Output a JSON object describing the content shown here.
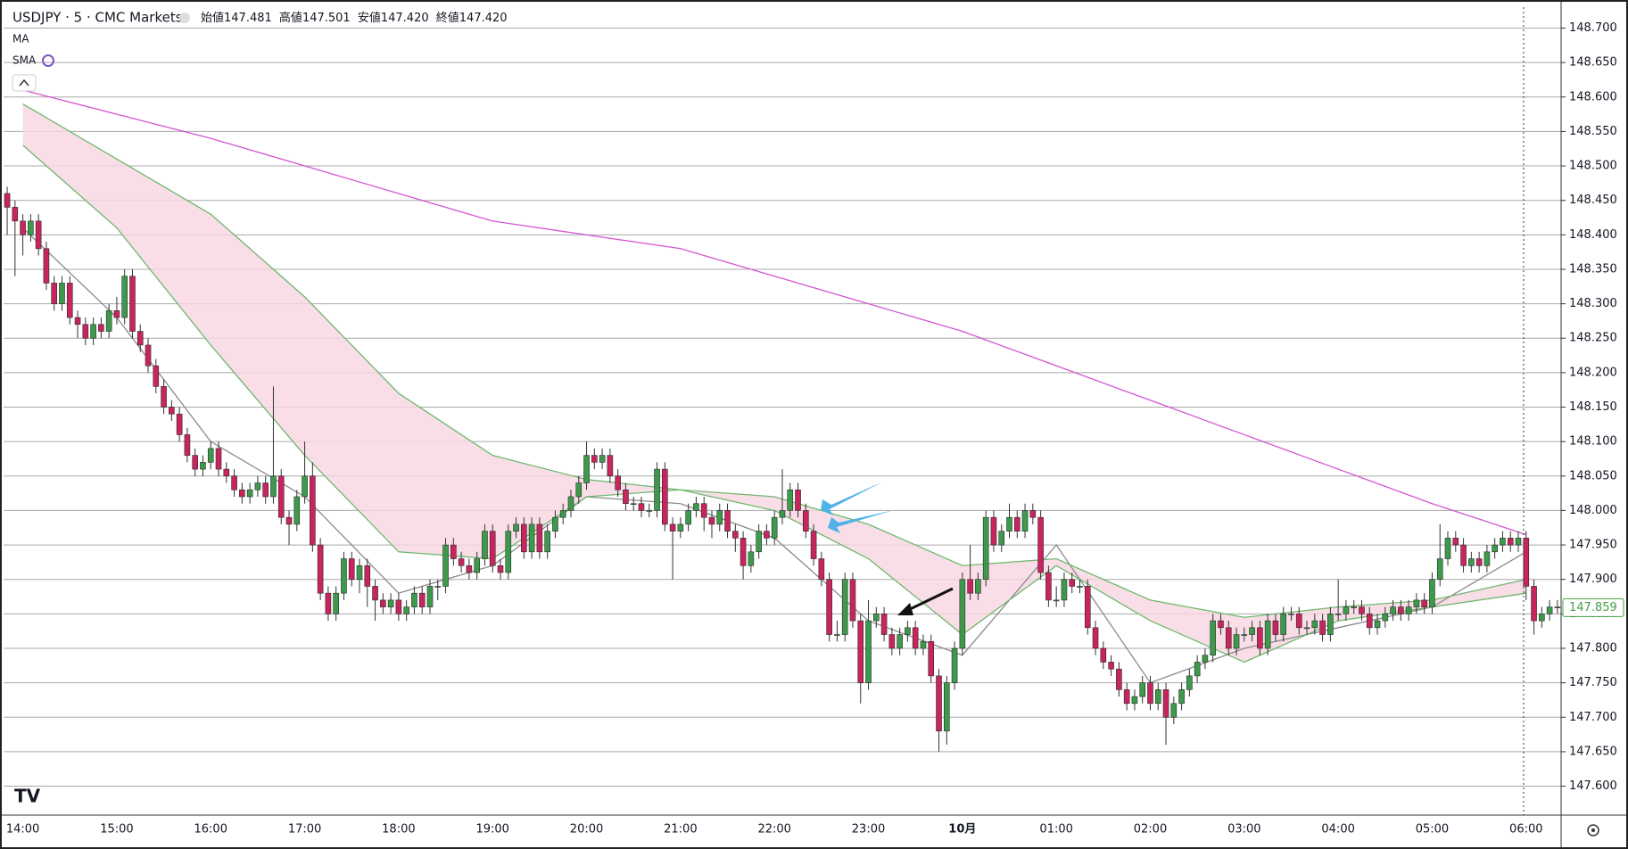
{
  "chart_data": {
    "type": "candlestick",
    "title": "USDJPY · 5 · CMC Markets",
    "ohlc": [
      {
        "label": "始値",
        "value": "147.481"
      },
      {
        "label": "高値",
        "value": "147.501"
      },
      {
        "label": "安値",
        "value": "147.420"
      },
      {
        "label": "終値",
        "value": "147.420"
      }
    ],
    "indicators": [
      "MA",
      "SMA"
    ],
    "up_color": "#3d9a4a",
    "down_color": "#c8245e",
    "xticks": [
      "14:00",
      "15:00",
      "16:00",
      "17:00",
      "18:00",
      "19:00",
      "20:00",
      "21:00",
      "22:00",
      "23:00",
      "10月",
      "01:00",
      "02:00",
      "03:00",
      "04:00",
      "05:00",
      "06:00"
    ],
    "ylim": [
      147.558,
      148.733
    ],
    "yticks": [
      {
        "value": 147.6,
        "label": "147.600"
      },
      {
        "value": 147.65,
        "label": "147.650"
      },
      {
        "value": 147.7,
        "label": "147.700"
      },
      {
        "value": 147.75,
        "label": "147.750"
      },
      {
        "value": 147.8,
        "label": "147.800"
      },
      {
        "value": 147.85,
        "label": "147.850"
      },
      {
        "value": 147.9,
        "label": "147.900"
      },
      {
        "value": 147.95,
        "label": "147.950"
      },
      {
        "value": 148.0,
        "label": "148.000"
      },
      {
        "value": 148.05,
        "label": "148.050"
      },
      {
        "value": 148.1,
        "label": "148.100"
      },
      {
        "value": 148.15,
        "label": "148.150"
      },
      {
        "value": 148.2,
        "label": "148.200"
      },
      {
        "value": 148.25,
        "label": "148.250"
      },
      {
        "value": 148.3,
        "label": "148.300"
      },
      {
        "value": 148.35,
        "label": "148.350"
      },
      {
        "value": 148.4,
        "label": "148.400"
      },
      {
        "value": 148.45,
        "label": "148.450"
      },
      {
        "value": 148.5,
        "label": "148.500"
      },
      {
        "value": 148.55,
        "label": "148.550"
      },
      {
        "value": 148.6,
        "label": "148.600"
      },
      {
        "value": 148.65,
        "label": "148.650"
      },
      {
        "value": 148.7,
        "label": "148.700"
      }
    ],
    "grid": true,
    "last": {
      "value": 147.859,
      "label": "147.859",
      "color": "#43a047"
    },
    "ma": [
      {
        "color": "#8a8a8a",
        "values": [
          148.41,
          148.28,
          148.1,
          148.02,
          147.88,
          147.92,
          148.02,
          148.01,
          147.96,
          147.84,
          147.79,
          147.95,
          147.75,
          147.8,
          147.83,
          147.86,
          147.94
        ]
      },
      {
        "color": "#6fb86f",
        "values": [
          148.59,
          148.51,
          148.43,
          148.31,
          148.17,
          148.08,
          148.045,
          148.03,
          148.02,
          147.98,
          147.92,
          147.93,
          147.87,
          147.845,
          147.86,
          147.87,
          147.9
        ]
      },
      {
        "color": "#6fb86f",
        "values": [
          148.53,
          148.41,
          148.24,
          148.08,
          147.94,
          147.93,
          148.02,
          148.03,
          148.0,
          147.93,
          147.82,
          147.92,
          147.84,
          147.78,
          147.84,
          147.86,
          147.88
        ]
      },
      {
        "color": "#d355d3",
        "values": [
          148.61,
          148.575,
          148.54,
          148.5,
          148.46,
          148.42,
          148.4,
          148.38,
          148.34,
          148.3,
          148.26,
          148.21,
          148.16,
          148.11,
          148.06,
          148.01,
          147.965
        ]
      }
    ],
    "cloud_color": "#f7d6e1",
    "candles": [
      [
        148.46,
        148.47,
        148.4,
        148.44
      ],
      [
        148.44,
        148.45,
        148.34,
        148.42
      ],
      [
        148.42,
        148.43,
        148.37,
        148.4
      ],
      [
        148.4,
        148.43,
        148.39,
        148.42
      ],
      [
        148.42,
        148.43,
        148.37,
        148.38
      ],
      [
        148.38,
        148.39,
        148.32,
        148.33
      ],
      [
        148.33,
        148.34,
        148.29,
        148.3
      ],
      [
        148.3,
        148.34,
        148.29,
        148.33
      ],
      [
        148.33,
        148.34,
        148.27,
        148.28
      ],
      [
        148.28,
        148.29,
        148.25,
        148.27
      ],
      [
        148.27,
        148.28,
        148.24,
        148.25
      ],
      [
        148.25,
        148.28,
        148.24,
        148.27
      ],
      [
        148.27,
        148.28,
        148.25,
        148.26
      ],
      [
        148.26,
        148.3,
        148.25,
        148.29
      ],
      [
        148.29,
        148.31,
        148.27,
        148.28
      ],
      [
        148.28,
        148.35,
        148.27,
        148.34
      ],
      [
        148.34,
        148.35,
        148.25,
        148.26
      ],
      [
        148.26,
        148.27,
        148.23,
        148.24
      ],
      [
        148.24,
        148.25,
        148.2,
        148.21
      ],
      [
        148.21,
        148.22,
        148.17,
        148.18
      ],
      [
        148.18,
        148.19,
        148.14,
        148.15
      ],
      [
        148.15,
        148.16,
        148.13,
        148.14
      ],
      [
        148.14,
        148.15,
        148.1,
        148.11
      ],
      [
        148.11,
        148.12,
        148.07,
        148.08
      ],
      [
        148.08,
        148.09,
        148.05,
        148.06
      ],
      [
        148.06,
        148.08,
        148.05,
        148.07
      ],
      [
        148.07,
        148.1,
        148.06,
        148.09
      ],
      [
        148.09,
        148.1,
        148.05,
        148.06
      ],
      [
        148.06,
        148.07,
        148.04,
        148.05
      ],
      [
        148.05,
        148.06,
        148.02,
        148.03
      ],
      [
        148.03,
        148.04,
        148.01,
        148.02
      ],
      [
        148.02,
        148.04,
        148.01,
        148.03
      ],
      [
        148.03,
        148.05,
        148.02,
        148.04
      ],
      [
        148.04,
        148.05,
        148.01,
        148.02
      ],
      [
        148.02,
        148.18,
        148.01,
        148.05
      ],
      [
        148.05,
        148.06,
        147.98,
        147.99
      ],
      [
        147.99,
        148.0,
        147.95,
        147.98
      ],
      [
        147.98,
        148.03,
        147.97,
        148.02
      ],
      [
        148.02,
        148.1,
        148.01,
        148.05
      ],
      [
        148.05,
        148.07,
        147.94,
        147.95
      ],
      [
        147.95,
        147.96,
        147.87,
        147.88
      ],
      [
        147.88,
        147.89,
        147.84,
        147.85
      ],
      [
        147.85,
        147.89,
        147.84,
        147.88
      ],
      [
        147.88,
        147.94,
        147.87,
        147.93
      ],
      [
        147.93,
        147.94,
        147.89,
        147.9
      ],
      [
        147.9,
        147.93,
        147.88,
        147.92
      ],
      [
        147.92,
        147.93,
        147.86,
        147.89
      ],
      [
        147.89,
        147.9,
        147.84,
        147.87
      ],
      [
        147.87,
        147.88,
        147.85,
        147.86
      ],
      [
        147.86,
        147.88,
        147.85,
        147.87
      ],
      [
        147.87,
        147.88,
        147.84,
        147.85
      ],
      [
        147.85,
        147.87,
        147.84,
        147.86
      ],
      [
        147.86,
        147.89,
        147.85,
        147.88
      ],
      [
        147.88,
        147.89,
        147.85,
        147.86
      ],
      [
        147.86,
        147.9,
        147.85,
        147.89
      ],
      [
        147.89,
        147.9,
        147.87,
        147.89
      ],
      [
        147.89,
        147.96,
        147.88,
        147.95
      ],
      [
        147.95,
        147.96,
        147.92,
        147.93
      ],
      [
        147.93,
        147.94,
        147.91,
        147.92
      ],
      [
        147.92,
        147.93,
        147.9,
        147.91
      ],
      [
        147.91,
        147.94,
        147.9,
        147.93
      ],
      [
        147.93,
        147.98,
        147.92,
        147.97
      ],
      [
        147.97,
        147.98,
        147.91,
        147.92
      ],
      [
        147.92,
        147.93,
        147.9,
        147.91
      ],
      [
        147.91,
        147.98,
        147.9,
        147.97
      ],
      [
        147.97,
        147.99,
        147.96,
        147.98
      ],
      [
        147.98,
        147.99,
        147.93,
        147.94
      ],
      [
        147.94,
        147.99,
        147.93,
        147.98
      ],
      [
        147.98,
        147.99,
        147.93,
        147.94
      ],
      [
        147.94,
        147.98,
        147.93,
        147.97
      ],
      [
        147.97,
        148.0,
        147.96,
        147.99
      ],
      [
        147.99,
        148.01,
        147.98,
        148.0
      ],
      [
        148.0,
        148.03,
        147.99,
        148.02
      ],
      [
        148.02,
        148.05,
        148.01,
        148.04
      ],
      [
        148.04,
        148.1,
        148.03,
        148.08
      ],
      [
        148.08,
        148.09,
        148.06,
        148.07
      ],
      [
        148.07,
        148.09,
        148.06,
        148.08
      ],
      [
        148.08,
        148.09,
        148.04,
        148.05
      ],
      [
        148.05,
        148.06,
        148.02,
        148.03
      ],
      [
        148.03,
        148.04,
        148.0,
        148.01
      ],
      [
        148.01,
        148.02,
        148.0,
        148.01
      ],
      [
        148.01,
        148.02,
        147.99,
        148.0
      ],
      [
        148.0,
        148.01,
        147.99,
        148.0
      ],
      [
        148.0,
        148.07,
        147.99,
        148.06
      ],
      [
        148.06,
        148.07,
        147.97,
        147.98
      ],
      [
        147.98,
        147.99,
        147.9,
        147.97
      ],
      [
        147.97,
        147.99,
        147.96,
        147.98
      ],
      [
        147.98,
        148.01,
        147.97,
        148.0
      ],
      [
        148.0,
        148.02,
        147.99,
        148.01
      ],
      [
        148.01,
        148.02,
        147.97,
        147.99
      ],
      [
        147.99,
        148.0,
        147.96,
        147.98
      ],
      [
        147.98,
        148.01,
        147.97,
        148.0
      ],
      [
        148.0,
        148.01,
        147.96,
        147.97
      ],
      [
        147.97,
        147.98,
        147.94,
        147.96
      ],
      [
        147.96,
        147.97,
        147.9,
        147.92
      ],
      [
        147.92,
        147.95,
        147.91,
        147.94
      ],
      [
        147.94,
        147.98,
        147.93,
        147.97
      ],
      [
        147.97,
        147.98,
        147.95,
        147.96
      ],
      [
        147.96,
        148.0,
        147.95,
        147.99
      ],
      [
        147.99,
        148.06,
        147.98,
        148.0
      ],
      [
        148.0,
        148.04,
        147.99,
        148.03
      ],
      [
        148.03,
        148.04,
        147.99,
        148.0
      ],
      [
        148.0,
        148.01,
        147.96,
        147.97
      ],
      [
        147.97,
        147.98,
        147.92,
        147.93
      ],
      [
        147.93,
        147.94,
        147.89,
        147.9
      ],
      [
        147.9,
        147.91,
        147.81,
        147.82
      ],
      [
        147.82,
        147.84,
        147.81,
        147.82
      ],
      [
        147.82,
        147.91,
        147.81,
        147.9
      ],
      [
        147.9,
        147.91,
        147.83,
        147.84
      ],
      [
        147.84,
        147.85,
        147.72,
        147.75
      ],
      [
        147.75,
        147.87,
        147.74,
        147.84
      ],
      [
        147.84,
        147.86,
        147.83,
        147.85
      ],
      [
        147.85,
        147.86,
        147.81,
        147.82
      ],
      [
        147.82,
        147.83,
        147.79,
        147.8
      ],
      [
        147.8,
        147.83,
        147.79,
        147.82
      ],
      [
        147.82,
        147.84,
        147.81,
        147.83
      ],
      [
        147.83,
        147.84,
        147.79,
        147.8
      ],
      [
        147.8,
        147.82,
        147.79,
        147.81
      ],
      [
        147.81,
        147.82,
        147.75,
        147.76
      ],
      [
        147.76,
        147.77,
        147.65,
        147.68
      ],
      [
        147.68,
        147.76,
        147.66,
        147.75
      ],
      [
        147.75,
        147.81,
        147.74,
        147.8
      ],
      [
        147.8,
        147.91,
        147.79,
        147.9
      ],
      [
        147.9,
        147.95,
        147.87,
        147.88
      ],
      [
        147.88,
        147.91,
        147.87,
        147.9
      ],
      [
        147.9,
        148.0,
        147.89,
        147.99
      ],
      [
        147.99,
        148.0,
        147.94,
        147.95
      ],
      [
        147.95,
        147.98,
        147.94,
        147.97
      ],
      [
        147.97,
        148.01,
        147.96,
        147.99
      ],
      [
        147.99,
        148.0,
        147.96,
        147.97
      ],
      [
        147.97,
        148.01,
        147.96,
        148.0
      ],
      [
        148.0,
        148.01,
        147.98,
        147.99
      ],
      [
        147.99,
        148.0,
        147.9,
        147.91
      ],
      [
        147.91,
        147.92,
        147.86,
        147.87
      ],
      [
        147.87,
        147.89,
        147.86,
        147.87
      ],
      [
        147.87,
        147.91,
        147.86,
        147.9
      ],
      [
        147.9,
        147.91,
        147.88,
        147.89
      ],
      [
        147.89,
        147.9,
        147.88,
        147.89
      ],
      [
        147.89,
        147.9,
        147.82,
        147.83
      ],
      [
        147.83,
        147.84,
        147.79,
        147.8
      ],
      [
        147.8,
        147.81,
        147.77,
        147.78
      ],
      [
        147.78,
        147.79,
        147.76,
        147.77
      ],
      [
        147.77,
        147.78,
        147.73,
        147.74
      ],
      [
        147.74,
        147.75,
        147.71,
        147.72
      ],
      [
        147.72,
        147.74,
        147.71,
        147.73
      ],
      [
        147.73,
        147.76,
        147.72,
        147.75
      ],
      [
        147.75,
        147.76,
        147.71,
        147.72
      ],
      [
        147.72,
        147.75,
        147.71,
        147.74
      ],
      [
        147.74,
        147.75,
        147.66,
        147.7
      ],
      [
        147.7,
        147.73,
        147.69,
        147.72
      ],
      [
        147.72,
        147.75,
        147.71,
        147.74
      ],
      [
        147.74,
        147.77,
        147.73,
        147.76
      ],
      [
        147.76,
        147.79,
        147.75,
        147.78
      ],
      [
        147.78,
        147.8,
        147.77,
        147.79
      ],
      [
        147.79,
        147.85,
        147.78,
        147.84
      ],
      [
        147.84,
        147.85,
        147.82,
        147.83
      ],
      [
        147.83,
        147.84,
        147.79,
        147.8
      ],
      [
        147.8,
        147.83,
        147.79,
        147.82
      ],
      [
        147.82,
        147.83,
        147.81,
        147.82
      ],
      [
        147.82,
        147.84,
        147.81,
        147.83
      ],
      [
        147.83,
        147.84,
        147.79,
        147.8
      ],
      [
        147.8,
        147.85,
        147.79,
        147.84
      ],
      [
        147.84,
        147.85,
        147.81,
        147.82
      ],
      [
        147.82,
        147.86,
        147.81,
        147.85
      ],
      [
        147.85,
        147.86,
        147.84,
        147.85
      ],
      [
        147.85,
        147.86,
        147.82,
        147.83
      ],
      [
        147.83,
        147.84,
        147.82,
        147.83
      ],
      [
        147.83,
        147.85,
        147.82,
        147.84
      ],
      [
        147.84,
        147.85,
        147.81,
        147.82
      ],
      [
        147.82,
        147.86,
        147.81,
        147.85
      ],
      [
        147.85,
        147.9,
        147.84,
        147.85
      ],
      [
        147.85,
        147.87,
        147.84,
        147.86
      ],
      [
        147.86,
        147.87,
        147.85,
        147.86
      ],
      [
        147.86,
        147.87,
        147.84,
        147.85
      ],
      [
        147.85,
        147.86,
        147.82,
        147.83
      ],
      [
        147.83,
        147.85,
        147.82,
        147.84
      ],
      [
        147.84,
        147.86,
        147.83,
        147.85
      ],
      [
        147.85,
        147.87,
        147.84,
        147.86
      ],
      [
        147.86,
        147.87,
        147.84,
        147.85
      ],
      [
        147.85,
        147.87,
        147.84,
        147.86
      ],
      [
        147.86,
        147.88,
        147.85,
        147.87
      ],
      [
        147.87,
        147.88,
        147.85,
        147.86
      ],
      [
        147.86,
        147.91,
        147.85,
        147.9
      ],
      [
        147.9,
        147.98,
        147.89,
        147.93
      ],
      [
        147.93,
        147.97,
        147.92,
        147.96
      ],
      [
        147.96,
        147.97,
        147.94,
        147.95
      ],
      [
        147.95,
        147.96,
        147.91,
        147.92
      ],
      [
        147.92,
        147.94,
        147.91,
        147.93
      ],
      [
        147.93,
        147.94,
        147.91,
        147.92
      ],
      [
        147.92,
        147.95,
        147.91,
        147.94
      ],
      [
        147.94,
        147.96,
        147.93,
        147.95
      ],
      [
        147.95,
        147.97,
        147.94,
        147.96
      ],
      [
        147.96,
        147.97,
        147.94,
        147.95
      ],
      [
        147.95,
        147.97,
        147.94,
        147.96
      ],
      [
        147.96,
        147.97,
        147.87,
        147.89
      ],
      [
        147.89,
        147.9,
        147.82,
        147.84
      ],
      [
        147.84,
        147.86,
        147.83,
        147.85
      ],
      [
        147.85,
        147.87,
        147.84,
        147.86
      ],
      [
        147.86,
        147.87,
        147.85,
        147.86
      ]
    ]
  }
}
